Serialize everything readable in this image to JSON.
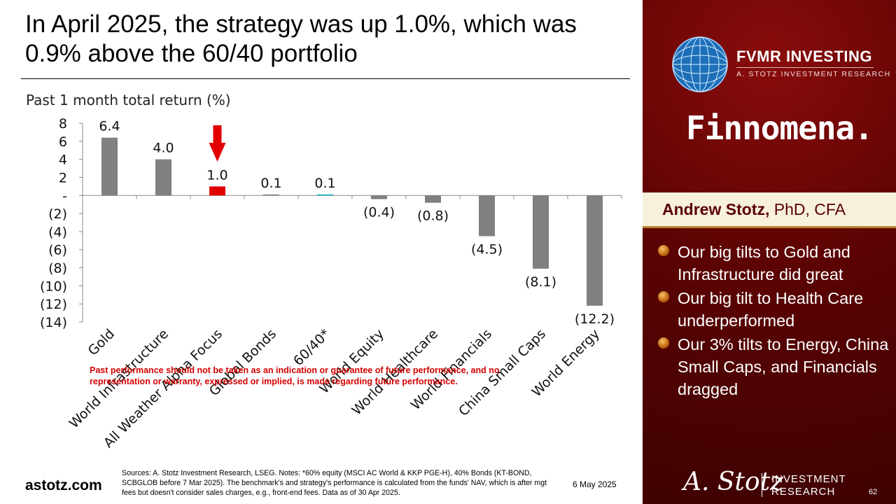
{
  "slide": {
    "title": "In April 2025, the strategy was up 1.0%, which was 0.9% above the 60/40 portfolio",
    "page_number": "62",
    "date": "6 May 2025",
    "website": "astotz.com",
    "sources": "Sources: A. Stotz Investment Research, LSEG. Notes: *60% equity (MSCI AC World & KKP PGE-H), 40% Bonds (KT-BOND, SCBGLOB before 7 Mar 2025). The benchmark's and strategy's performance is calculated from the funds' NAV, which is after mgt fees but doesn't consider sales charges, e.g., front-end fees. Data as of 30 Apr 2025."
  },
  "chart_data": {
    "type": "bar",
    "title": "Past 1 month total return (%)",
    "categories": [
      "Gold",
      "World Infrastructure",
      "All Weather Alpha Focus",
      "Global Bonds",
      "60/40*",
      "World Equity",
      "World Healthcare",
      "World Financials",
      "China Small Caps",
      "World Energy"
    ],
    "values": [
      6.4,
      4.0,
      1.0,
      0.1,
      0.1,
      -0.4,
      -0.8,
      -4.5,
      -8.1,
      -12.2
    ],
    "data_labels": [
      "6.4",
      "4.0",
      "1.0",
      "0.1",
      "0.1",
      "(0.4)",
      "(0.8)",
      "(4.5)",
      "(8.1)",
      "(12.2)"
    ],
    "bar_colors": [
      "#808080",
      "#808080",
      "#e00000",
      "#808080",
      "#00b0c8",
      "#808080",
      "#808080",
      "#808080",
      "#808080",
      "#808080"
    ],
    "highlight_category": "All Weather Alpha Focus",
    "arrow_color": "#e00000",
    "ylim": [
      -14,
      8
    ],
    "yticks": [
      8,
      6,
      4,
      2,
      0,
      -2,
      -4,
      -6,
      -8,
      -10,
      -12,
      -14
    ],
    "ytick_labels": [
      "8",
      "6",
      "4",
      "2",
      "-",
      "(2)",
      "(4)",
      "(6)",
      "(8)",
      "(10)",
      "(12)",
      "(14)"
    ],
    "grid": false,
    "xlabel": "",
    "ylabel": "",
    "disclaimer": "Past performance should not be taken as an indication or guarantee of future performance, and no representation or warranty, expressed or implied, is made regarding future performance."
  },
  "sidebar": {
    "brand_name": "FVMR INVESTING",
    "brand_sub": "A. STOTZ INVESTMENT RESEARCH",
    "partner_logo": "Finnomena.",
    "presenter_name": "Andrew Stotz,",
    "presenter_credentials": " PhD, CFA",
    "bullets": [
      "Our big tilts to Gold and Infrastructure did great",
      "Our big tilt to Health Care underperformed",
      "Our 3% tilts to Energy, China Small Caps, and Financials dragged"
    ],
    "signature": "A. Stotz",
    "footer_brand_line1": "INVESTMENT",
    "footer_brand_line2": "RESEARCH"
  },
  "colors": {
    "accent_red": "#e00000",
    "bar_gray": "#808080",
    "benchmark_teal": "#00b0c8",
    "sidebar_maroon": "#5c0303",
    "presenter_text": "#5a0000",
    "disclaimer_red": "#d40000"
  }
}
